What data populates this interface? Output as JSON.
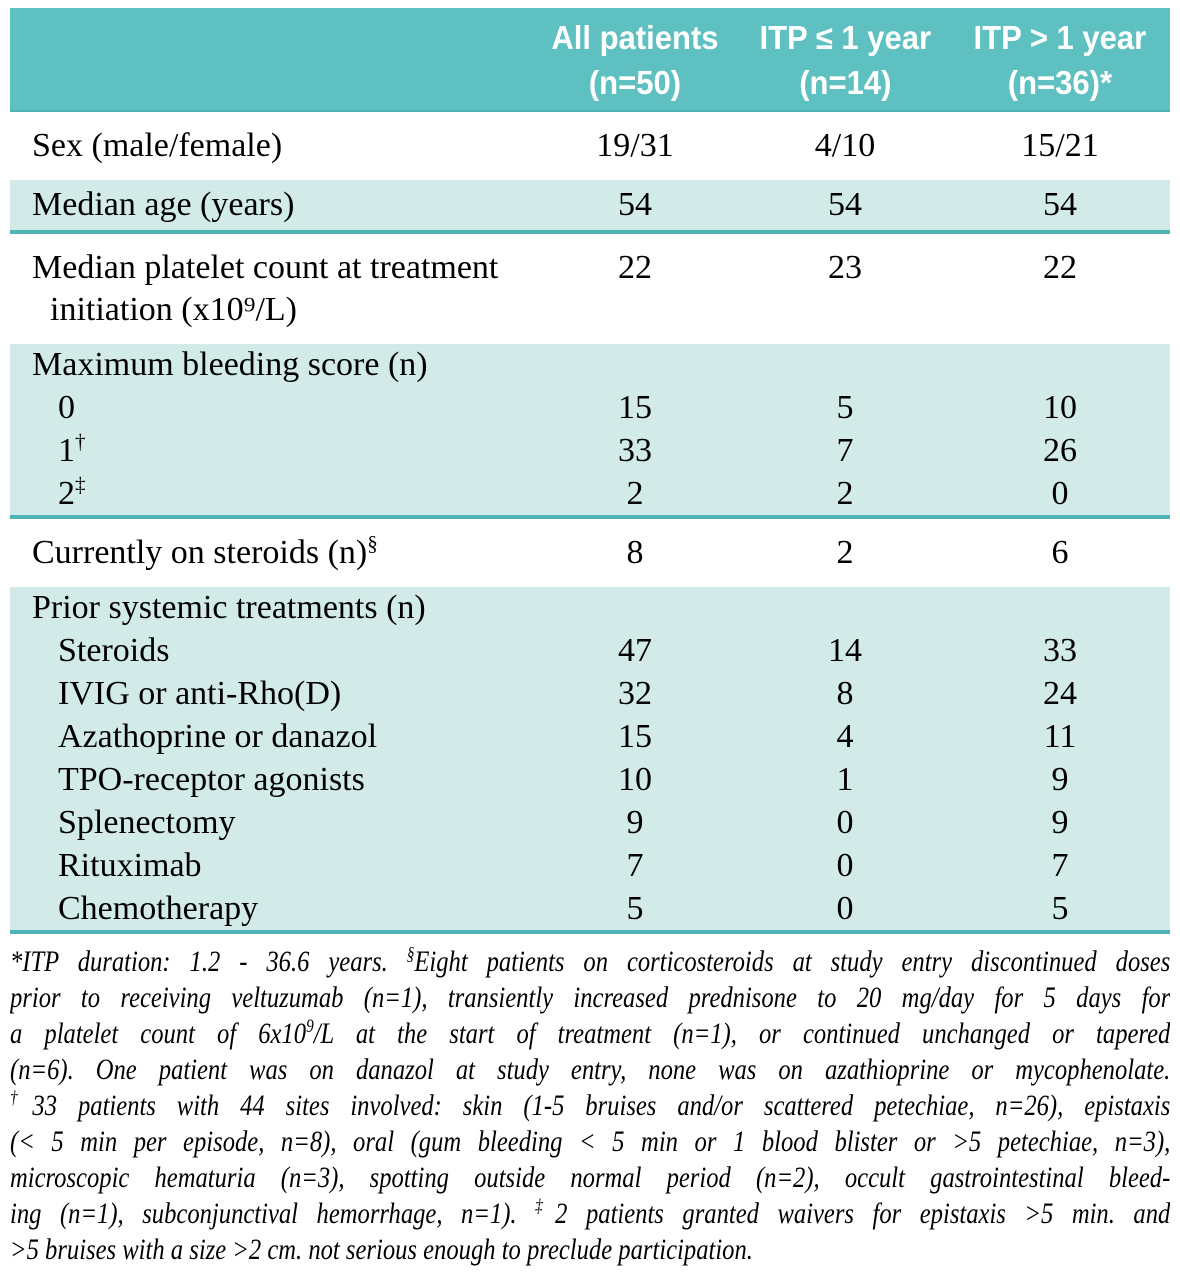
{
  "colors": {
    "header_bg": "#5ec0c1",
    "header_text": "#ffffff",
    "shaded_row_bg": "#d2ebe9",
    "divider": "#4fb3b5",
    "body_text": "#000000"
  },
  "table": {
    "header": {
      "columns": [
        {
          "line1": "All patients",
          "line2": "(n=50)"
        },
        {
          "line1": "ITP ≤ 1 year",
          "line2": "(n=14)"
        },
        {
          "line1": "ITP > 1 year",
          "line2": "(n=36)*"
        }
      ]
    },
    "rows": [
      {
        "label": "Sex (male/female)",
        "sup": "",
        "label_line2": "",
        "indent": false,
        "section": false,
        "shaded": false,
        "standalone": true,
        "divider": false,
        "values": [
          "19/31",
          "4/10",
          "15/21"
        ]
      },
      {
        "label": "Median age (years)",
        "sup": "",
        "label_line2": "",
        "indent": false,
        "section": false,
        "shaded": true,
        "solo": true,
        "divider": true,
        "values": [
          "54",
          "54",
          "54"
        ]
      },
      {
        "label": "Median platelet count at treatment",
        "sup": "",
        "label_line2": "initiation (x10⁹/L)",
        "indent": false,
        "section": false,
        "shaded": false,
        "standalone": true,
        "divider": false,
        "values": [
          "22",
          "23",
          "22"
        ]
      },
      {
        "label": "Maximum bleeding score (n)",
        "sup": "",
        "label_line2": "",
        "indent": false,
        "section": true,
        "shaded": true,
        "divider": false,
        "values": null
      },
      {
        "label": "0",
        "sup": "",
        "label_line2": "",
        "indent": true,
        "section": false,
        "shaded": true,
        "compact": true,
        "divider": false,
        "values": [
          "15",
          "5",
          "10"
        ]
      },
      {
        "label": "1",
        "sup": "†",
        "label_line2": "",
        "indent": true,
        "section": false,
        "shaded": true,
        "compact": true,
        "divider": false,
        "values": [
          "33",
          "7",
          "26"
        ]
      },
      {
        "label": "2",
        "sup": "‡",
        "label_line2": "",
        "indent": true,
        "section": false,
        "shaded": true,
        "compact": true,
        "divider": true,
        "values": [
          "2",
          "2",
          "0"
        ]
      },
      {
        "label": "Currently on steroids (n)",
        "sup": "§",
        "label_line2": "",
        "indent": false,
        "section": false,
        "shaded": false,
        "standalone": true,
        "divider": false,
        "values": [
          "8",
          "2",
          "6"
        ]
      },
      {
        "label": "Prior systemic treatments (n)",
        "sup": "",
        "label_line2": "",
        "indent": false,
        "section": true,
        "shaded": true,
        "divider": false,
        "values": null
      },
      {
        "label": "Steroids",
        "sup": "",
        "label_line2": "",
        "indent": true,
        "section": false,
        "shaded": true,
        "compact": true,
        "divider": false,
        "values": [
          "47",
          "14",
          "33"
        ]
      },
      {
        "label": "IVIG or anti-Rho(D)",
        "sup": "",
        "label_line2": "",
        "indent": true,
        "section": false,
        "shaded": true,
        "compact": true,
        "divider": false,
        "values": [
          "32",
          "8",
          "24"
        ]
      },
      {
        "label": "Azathoprine or danazol",
        "sup": "",
        "label_line2": "",
        "indent": true,
        "section": false,
        "shaded": true,
        "compact": true,
        "divider": false,
        "values": [
          "15",
          "4",
          "11"
        ]
      },
      {
        "label": "TPO-receptor agonists",
        "sup": "",
        "label_line2": "",
        "indent": true,
        "section": false,
        "shaded": true,
        "compact": true,
        "divider": false,
        "values": [
          "10",
          "1",
          "9"
        ]
      },
      {
        "label": "Splenectomy",
        "sup": "",
        "label_line2": "",
        "indent": true,
        "section": false,
        "shaded": true,
        "compact": true,
        "divider": false,
        "values": [
          "9",
          "0",
          "9"
        ]
      },
      {
        "label": "Rituximab",
        "sup": "",
        "label_line2": "",
        "indent": true,
        "section": false,
        "shaded": true,
        "compact": true,
        "divider": false,
        "values": [
          "7",
          "0",
          "7"
        ]
      },
      {
        "label": "Chemotherapy",
        "sup": "",
        "label_line2": "",
        "indent": true,
        "section": false,
        "shaded": true,
        "compact": true,
        "divider": true,
        "values": [
          "5",
          "0",
          "5"
        ]
      }
    ]
  },
  "footnote": {
    "lines": [
      [
        {
          "sup": false,
          "text": "*ITP duration: 1.2 - 36.6 years. "
        },
        {
          "sup": true,
          "text": "§"
        },
        {
          "sup": false,
          "text": "Eight patients on corticosteroids at study entry discontinued doses"
        }
      ],
      [
        {
          "sup": false,
          "text": "prior to receiving veltuzumab (n=1), transiently increased prednisone to 20 mg/day for 5 days for"
        }
      ],
      [
        {
          "sup": false,
          "text": "a platelet count of 6x10"
        },
        {
          "sup": true,
          "text": "9"
        },
        {
          "sup": false,
          "text": "/L at the start of treatment (n=1), or continued unchanged or tapered"
        }
      ],
      [
        {
          "sup": false,
          "text": "(n=6). One patient was on danazol at study entry, none was on azathioprine or mycophenolate."
        }
      ],
      [
        {
          "sup": true,
          "text": "†"
        },
        {
          "sup": false,
          "text": "33 patients with 44 sites involved: skin (1-5 bruises and/or scattered petechiae, n=26), epistaxis"
        }
      ],
      [
        {
          "sup": false,
          "text": "(< 5 min per episode, n=8), oral (gum bleeding < 5 min or 1 blood blister or >5 petechiae, n=3),"
        }
      ],
      [
        {
          "sup": false,
          "text": "microscopic hematuria (n=3), spotting outside normal period (n=2), occult gastrointestinal bleed-"
        }
      ],
      [
        {
          "sup": false,
          "text": "ing (n=1), subconjunctival hemorrhage, n=1). "
        },
        {
          "sup": true,
          "text": "‡"
        },
        {
          "sup": false,
          "text": "2 patients granted waivers for epistaxis >5 min. and"
        }
      ],
      [
        {
          "sup": false,
          "text": ">5 bruises with a size >2 cm. not serious enough to preclude participation."
        }
      ]
    ]
  }
}
